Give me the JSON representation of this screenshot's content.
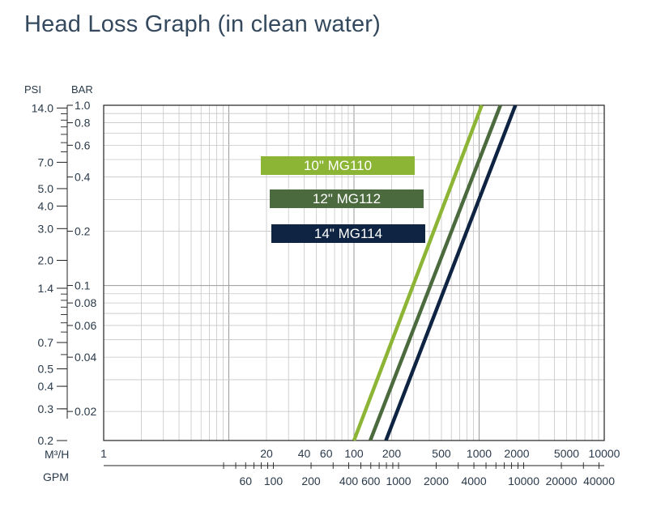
{
  "page": {
    "title": "Head Loss Graph (in clean water)"
  },
  "chart_data": {
    "type": "line",
    "title": "Head Loss Graph (in clean water)",
    "log_x": true,
    "log_y": true,
    "grid": true,
    "xlim": [
      1,
      10000
    ],
    "ylim": [
      0.0138,
      1.0
    ],
    "x_unit": "M³/H",
    "x2_unit": "GPM",
    "y_unit_psi": "PSI",
    "y_unit_bar": "BAR",
    "y_ticks_bar": [
      "1.0",
      "0.8",
      "0.6",
      "0.4",
      "0.2",
      "0.1",
      "0.08",
      "0.06",
      "0.04",
      "0.02"
    ],
    "y_ticks_psi": [
      "14.0",
      "7.0",
      "5.0",
      "4.0",
      "3.0",
      "2.0",
      "1.4",
      "0.7",
      "0.5",
      "0.4",
      "0.3",
      "0.2"
    ],
    "x_ticks_m3h": [
      "1",
      "20",
      "40",
      "60",
      "100",
      "200",
      "500",
      "1000",
      "2000",
      "5000",
      "10000"
    ],
    "x_ticks_gpm": [
      "60",
      "100",
      "200",
      "400",
      "600",
      "1000",
      "2000",
      "4000",
      "10000",
      "20000",
      "40000"
    ],
    "series": [
      {
        "name": "10\" MG110",
        "color": "#8db535",
        "points": [
          [
            100,
            0.0138
          ],
          [
            1050,
            1.0
          ]
        ]
      },
      {
        "name": "12\" MG112",
        "color": "#4b6b3e",
        "points": [
          [
            135,
            0.0138
          ],
          [
            1480,
            1.0
          ]
        ]
      },
      {
        "name": "14\" MG114",
        "color": "#0e2442",
        "points": [
          [
            180,
            0.0138
          ],
          [
            1950,
            1.0
          ]
        ]
      }
    ]
  }
}
